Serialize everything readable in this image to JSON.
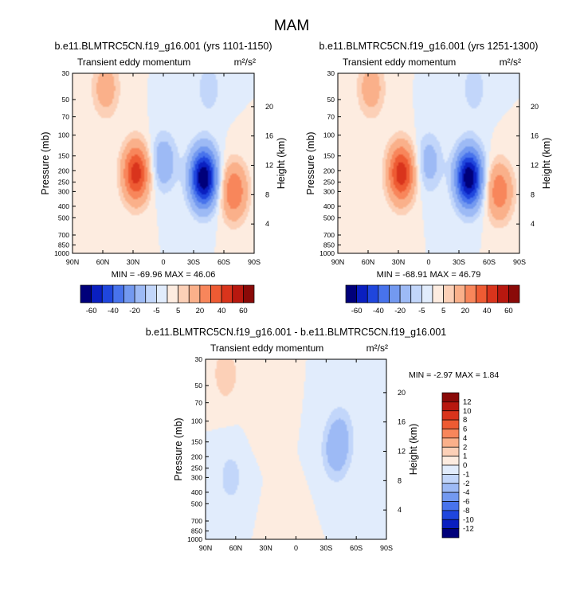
{
  "page_title": "MAM",
  "chart_data": [
    {
      "type": "heatmap",
      "title": "b.e11.BLMTRC5CN.f19_g16.001 (yrs 1101-1150)",
      "subtitle_left": "Transient eddy momentum",
      "units": "m²/s²",
      "ylabel": "Pressure (mb)",
      "ylabel_right": "Height (km)",
      "x_ticks": [
        "90N",
        "60N",
        "30N",
        "0",
        "30S",
        "60S",
        "90S"
      ],
      "y_ticks": [
        "30",
        "50",
        "70",
        "100",
        "150",
        "200",
        "250",
        "300",
        "400",
        "500",
        "700",
        "850",
        "1000"
      ],
      "y_right_ticks": [
        "20",
        "16",
        "12",
        "8",
        "4"
      ],
      "stats_label": "MIN = -69.96  MAX =  46.06",
      "min": -69.96,
      "max": 46.06,
      "features": [
        {
          "lat": 27,
          "pressure": 210,
          "value": 46
        },
        {
          "lat": 57,
          "pressure": 40,
          "value": 16
        },
        {
          "lat": -40,
          "pressure": 230,
          "value": -70
        },
        {
          "lat": -70,
          "pressure": 300,
          "value": 30
        },
        {
          "lat": 0,
          "pressure": 170,
          "value": -18
        },
        {
          "lat": -45,
          "pressure": 40,
          "value": -8
        }
      ]
    },
    {
      "type": "heatmap",
      "title": "b.e11.BLMTRC5CN.f19_g16.001 (yrs 1251-1300)",
      "subtitle_left": "Transient eddy momentum",
      "units": "m²/s²",
      "ylabel": "Pressure (mb)",
      "ylabel_right": "Height (km)",
      "x_ticks": [
        "90N",
        "60N",
        "30N",
        "0",
        "30S",
        "60S",
        "90S"
      ],
      "y_ticks": [
        "30",
        "50",
        "70",
        "100",
        "150",
        "200",
        "250",
        "300",
        "400",
        "500",
        "700",
        "850",
        "1000"
      ],
      "y_right_ticks": [
        "20",
        "16",
        "12",
        "8",
        "4"
      ],
      "stats_label": "MIN = -68.91  MAX =  46.79",
      "min": -68.91,
      "max": 46.79,
      "features": [
        {
          "lat": 27,
          "pressure": 210,
          "value": 47
        },
        {
          "lat": 57,
          "pressure": 40,
          "value": 16
        },
        {
          "lat": -40,
          "pressure": 230,
          "value": -69
        },
        {
          "lat": -70,
          "pressure": 300,
          "value": 28
        },
        {
          "lat": 0,
          "pressure": 170,
          "value": -15
        },
        {
          "lat": -45,
          "pressure": 40,
          "value": -8
        }
      ]
    },
    {
      "type": "heatmap",
      "title": "b.e11.BLMTRC5CN.f19_g16.001 - b.e11.BLMTRC5CN.f19_g16.001",
      "subtitle_left": "Transient eddy momentum",
      "units": "m²/s²",
      "ylabel": "Pressure (mb)",
      "ylabel_right": "Height (km)",
      "x_ticks": [
        "90N",
        "60N",
        "30N",
        "0",
        "30S",
        "60S",
        "90S"
      ],
      "y_ticks": [
        "30",
        "50",
        "70",
        "100",
        "150",
        "200",
        "250",
        "300",
        "400",
        "500",
        "700",
        "850",
        "1000"
      ],
      "y_right_ticks": [
        "20",
        "16",
        "12",
        "8",
        "4"
      ],
      "stats_label": "MIN = -2.97  MAX =  1.84",
      "min": -2.97,
      "max": 1.84,
      "features": [
        {
          "lat": -40,
          "pressure": 180,
          "value": -3
        },
        {
          "lat": -45,
          "pressure": 120,
          "value": -1.5
        },
        {
          "lat": 65,
          "pressure": 300,
          "value": -1.5
        },
        {
          "lat": 70,
          "pressure": 40,
          "value": 1.8
        },
        {
          "lat": 30,
          "pressure": 80,
          "value": 1
        },
        {
          "lat": 10,
          "pressure": 800,
          "value": 1
        }
      ]
    }
  ],
  "colorbar_main": {
    "labels": [
      "-60",
      "-40",
      "-20",
      "-5",
      "5",
      "20",
      "40",
      "60"
    ],
    "colors": [
      "#00007a",
      "#0a1fc0",
      "#1f46dd",
      "#4873ec",
      "#7399f0",
      "#9dbaf5",
      "#c2d6fa",
      "#e1ecfc",
      "#fdece0",
      "#fcd0b7",
      "#fab08a",
      "#f8865b",
      "#ee5b33",
      "#d9341c",
      "#b8180f",
      "#8a0a08"
    ]
  },
  "colorbar_diff": {
    "labels": [
      "12",
      "10",
      "8",
      "6",
      "4",
      "2",
      "1",
      "0",
      "-1",
      "-2",
      "-4",
      "-6",
      "-8",
      "-10",
      "-12"
    ],
    "colors": [
      "#8a0a08",
      "#b8180f",
      "#d9341c",
      "#ee5b33",
      "#f8865b",
      "#fab08a",
      "#fcd0b7",
      "#fdece0",
      "#e1ecfc",
      "#c2d6fa",
      "#9dbaf5",
      "#7399f0",
      "#4873ec",
      "#1f46dd",
      "#0a1fc0",
      "#00007a"
    ]
  }
}
